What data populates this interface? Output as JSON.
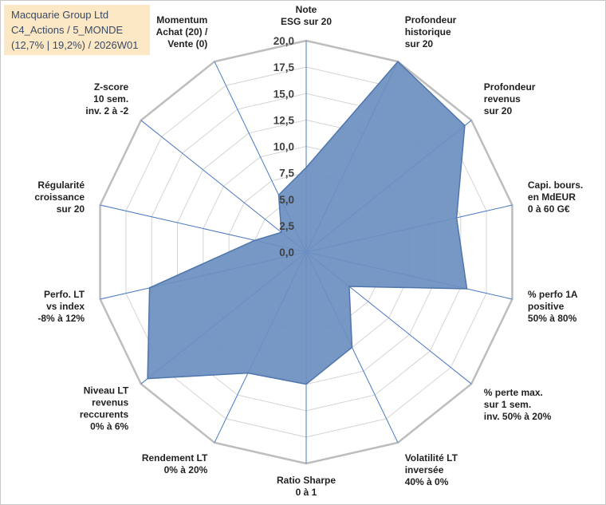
{
  "title": {
    "line1": "Macquarie Group Ltd",
    "line2": "C4_Actions / 5_MONDE",
    "line3": "(12,7% | 19,2%) / 2026W01"
  },
  "colors": {
    "area_fill": "#6b8fc0",
    "area_stroke": "#4f75ad",
    "grid": "#d4d4d4",
    "outer_ring": "#bdbdbd",
    "spoke": "#4a78c2",
    "title_bg": "#fce8c4"
  },
  "chart_data": {
    "type": "radar",
    "scale": {
      "min": 0,
      "max": 20,
      "step": 2.5
    },
    "tick_labels": [
      "0,0",
      "2,5",
      "5,0",
      "7,5",
      "10,0",
      "12,5",
      "15,0",
      "17,5",
      "20,0"
    ],
    "axes": [
      {
        "label": [
          "Note",
          "ESG sur 20"
        ],
        "value": 8.0
      },
      {
        "label": [
          "Profondeur",
          "historique",
          "sur 20"
        ],
        "value": 20.0
      },
      {
        "label": [
          "Profondeur",
          "revenus",
          "sur 20"
        ],
        "value": 19.2
      },
      {
        "label": [
          "Capi. bours.",
          "en MdEUR",
          "0 à 60 G€"
        ],
        "value": 14.6
      },
      {
        "label": [
          "% perfo 1A",
          "positive",
          "50% à 80%"
        ],
        "value": 15.6
      },
      {
        "label": [
          "% perte max.",
          "sur 1 sem.",
          "inv. 50% à 20%"
        ],
        "value": 5.2
      },
      {
        "label": [
          "Volatilité LT",
          "inversée",
          "40% à 0%"
        ],
        "value": 10.0
      },
      {
        "label": [
          "Ratio Sharpe",
          "0 à 1"
        ],
        "value": 12.5
      },
      {
        "label": [
          "Rendement LT",
          "0% à 20%"
        ],
        "value": 12.7
      },
      {
        "label": [
          "Niveau LT",
          "revenus",
          "reccurents",
          "0% à 6%"
        ],
        "value": 19.2
      },
      {
        "label": [
          "Perfo. LT",
          "vs index",
          "-8% à 12%"
        ],
        "value": 15.2
      },
      {
        "label": [
          "Régularité",
          "croissance",
          "sur 20"
        ],
        "value": 5.0
      },
      {
        "label": [
          "Z-score",
          "10 sem.",
          "inv. 2 à -2"
        ],
        "value": 3.0
      },
      {
        "label": [
          "Momentum",
          "Achat (20) /",
          "Vente (0)"
        ],
        "value": 6.0
      }
    ]
  }
}
